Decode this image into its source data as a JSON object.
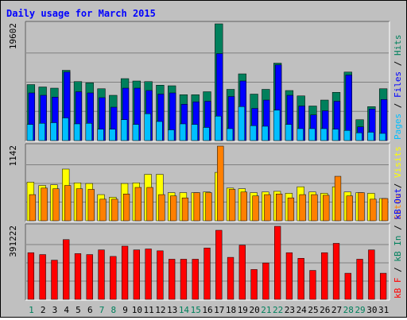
{
  "chart_data": {
    "type": "bar",
    "title": "Daily usage for March 2015",
    "categories": [
      "1",
      "2",
      "3",
      "4",
      "5",
      "6",
      "7",
      "8",
      "9",
      "10",
      "11",
      "12",
      "13",
      "14",
      "15",
      "16",
      "17",
      "18",
      "19",
      "20",
      "21",
      "22",
      "23",
      "24",
      "25",
      "26",
      "27",
      "28",
      "29",
      "30",
      "31"
    ],
    "weekend_days": [
      "1",
      "7",
      "8",
      "14",
      "15",
      "21",
      "22",
      "28",
      "29"
    ],
    "panels": [
      {
        "id": "top",
        "max_label": "19602",
        "ylim": [
          0,
          19602
        ],
        "series": [
          {
            "name": "Hits",
            "color": "#00805c",
            "values": [
              9400,
              9000,
              8800,
              11800,
              9900,
              9700,
              8700,
              7600,
              10400,
              10000,
              9900,
              9300,
              9200,
              7700,
              7700,
              8200,
              19602,
              8600,
              11200,
              7800,
              8600,
              13000,
              8400,
              7500,
              5800,
              6800,
              8100,
              11500,
              3500,
              5700,
              8700
            ]
          },
          {
            "name": "Files",
            "color": "#0000ff",
            "values": [
              8000,
              7600,
              7300,
              11500,
              8200,
              8000,
              7200,
              5600,
              8800,
              8800,
              8400,
              7800,
              8000,
              6100,
              6500,
              6600,
              14600,
              7400,
              10000,
              5400,
              6800,
              12700,
              7600,
              5800,
              4300,
              5000,
              6600,
              11000,
              2300,
              5300,
              6900
            ]
          },
          {
            "name": "Pages",
            "color": "#00bfff",
            "values": [
              2700,
              2900,
              3000,
              3800,
              2800,
              2900,
              1900,
              1900,
              3500,
              2700,
              4500,
              3200,
              1800,
              2800,
              2700,
              2200,
              4100,
              2000,
              5700,
              2500,
              2400,
              5100,
              2700,
              2000,
              2000,
              2000,
              1900,
              1700,
              1300,
              1400,
              1200
            ]
          }
        ],
        "legend": [
          "Pages",
          "Files",
          "Hits"
        ]
      },
      {
        "id": "mid",
        "max_label": "1142",
        "ylim": [
          0,
          1142
        ],
        "series": [
          {
            "name": "Visits",
            "color": "#ffff00",
            "values": [
              590,
              540,
              550,
              790,
              580,
              570,
              400,
              360,
              570,
              580,
              710,
              710,
              430,
              430,
              430,
              440,
              740,
              500,
              490,
              430,
              440,
              450,
              420,
              520,
              440,
              420,
              520,
              440,
              430,
              420,
              340
            ]
          },
          {
            "name": "Sites",
            "color": "#ff8000",
            "values": [
              400,
              500,
              490,
              540,
              490,
              480,
              330,
              330,
              410,
              510,
              510,
              400,
              380,
              350,
              430,
              430,
              1142,
              480,
              440,
              380,
              400,
              410,
              350,
              400,
              400,
              390,
              680,
              380,
              430,
              330,
              340
            ]
          }
        ],
        "legend": [
          "Sites",
          "Visits"
        ]
      },
      {
        "id": "bot",
        "max_label": "391222",
        "ylim": [
          0,
          391222
        ],
        "series": [
          {
            "name": "KBytes",
            "color": "#ff0000",
            "values": [
              250000,
              240000,
              210000,
              320000,
              245000,
              240000,
              265000,
              230000,
              285000,
              265000,
              270000,
              260000,
              215000,
              215000,
              215000,
              275000,
              370000,
              225000,
              290000,
              160000,
              195000,
              391222,
              250000,
              220000,
              155000,
              250000,
              300000,
              140000,
              215000,
              265000,
              140000
            ]
          }
        ],
        "legend": [
          "kB F",
          "kB In",
          "kB Out"
        ]
      }
    ],
    "legend_colors": {
      "Pages": "#00bfff",
      "Files": "#0000ff",
      "Hits": "#00805c",
      "Sites": "#ff8000",
      "Visits": "#ffff00",
      "kB F": "#ff0000",
      "kB In": "#00805c",
      "kB Out": "#0000ff"
    }
  }
}
